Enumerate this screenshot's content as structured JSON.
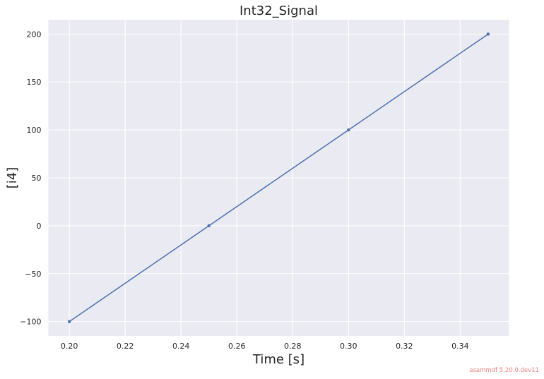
{
  "chart_data": {
    "type": "line",
    "title": "Int32_Signal",
    "xlabel": "Time [s]",
    "ylabel": "[i4]",
    "xlim": [
      0.1925,
      0.3575
    ],
    "ylim": [
      -115,
      215
    ],
    "xticks": [
      0.2,
      0.22,
      0.24,
      0.26,
      0.28,
      0.3,
      0.32,
      0.34
    ],
    "xtick_labels": [
      "0.20",
      "0.22",
      "0.24",
      "0.26",
      "0.28",
      "0.30",
      "0.32",
      "0.34"
    ],
    "yticks": [
      -100,
      -50,
      0,
      50,
      100,
      150,
      200
    ],
    "ytick_labels": [
      "−100",
      "−50",
      "0",
      "50",
      "100",
      "150",
      "200"
    ],
    "grid": true,
    "series": [
      {
        "x": [
          0.2,
          0.25,
          0.3,
          0.35
        ],
        "y": [
          -100,
          0,
          100,
          200
        ],
        "color": "#4c72b0",
        "marker": "dot"
      }
    ]
  },
  "watermark": "asammdf 5.20.0.dev11",
  "colors": {
    "plot_background": "#eaeaf2",
    "grid": "#ffffff",
    "series": "#4c72b0",
    "watermark": "#f08080"
  }
}
